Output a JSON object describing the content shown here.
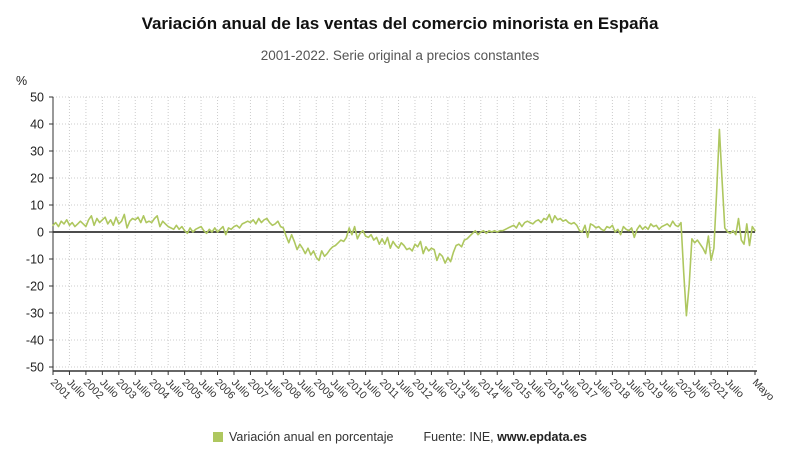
{
  "header": {
    "title": "Variación anual de las ventas del comercio minorista en España",
    "subtitle": "2001-2022. Serie original a precios constantes"
  },
  "legend": {
    "label": "Variación anual en porcentaje"
  },
  "footer": {
    "source_prefix": "Fuente: INE, ",
    "source_site": "www.epdata.es"
  },
  "chart_data": {
    "type": "line",
    "title": "Variación anual de las ventas del comercio minorista en España",
    "subtitle": "2001-2022. Serie original a precios constantes",
    "xlabel": "",
    "ylabel": "%",
    "ylim": [
      -50,
      50
    ],
    "y_ticks": [
      50,
      40,
      30,
      20,
      10,
      0,
      -10,
      -20,
      -30,
      -40,
      -50
    ],
    "x_tick_labels": [
      "2001",
      "Julio",
      "2002",
      "Julio",
      "2003",
      "Julio",
      "2004",
      "Julio",
      "2005",
      "Julio",
      "2006",
      "Julio",
      "2007",
      "Julio",
      "2008",
      "Julio",
      "2009",
      "Julio",
      "2010",
      "Julio",
      "2011",
      "Julio",
      "2012",
      "Julio",
      "2013",
      "Julio",
      "2014",
      "Julio",
      "2015",
      "Julio",
      "2016",
      "Julio",
      "2017",
      "Julio",
      "2018",
      "Julio",
      "2019",
      "Julio",
      "2020",
      "Julio",
      "2021",
      "Julio",
      "Mayo"
    ],
    "x_start": "2001-01",
    "x_end": "2022-05",
    "frequency": "monthly",
    "grid": "dotted",
    "zero_line": true,
    "legend_position": "bottom",
    "colors": {
      "line": "#aec75f",
      "grid": "#cccccc",
      "axis": "#333333",
      "zero_line": "#333333",
      "tick_label": "#333333"
    },
    "series": [
      {
        "name": "Variación anual en porcentaje",
        "values": [
          2.5,
          3.5,
          2,
          4,
          3,
          4.5,
          2.5,
          3.5,
          2,
          3,
          4,
          3,
          2,
          4.5,
          6,
          2.5,
          5,
          3.5,
          4.5,
          5.5,
          3,
          4.5,
          2.5,
          5.5,
          3,
          4,
          6.5,
          1.5,
          4,
          5,
          4.5,
          5.5,
          3.5,
          6,
          3.5,
          4,
          3.5,
          5,
          6,
          2,
          4,
          3,
          2,
          1.5,
          1,
          2.5,
          1,
          2,
          0.5,
          -0.5,
          1.5,
          0,
          1,
          1.5,
          2,
          0.5,
          -0.5,
          1,
          0,
          1.5,
          0,
          1,
          2,
          -1,
          1.5,
          1,
          2,
          2.5,
          1.5,
          3,
          3.5,
          4,
          3.5,
          4.5,
          3,
          5,
          3.5,
          4.5,
          5,
          3.5,
          2.5,
          3,
          4,
          2,
          1.5,
          -1.5,
          -4,
          -1,
          -3.5,
          -6.5,
          -4.5,
          -6,
          -8,
          -6,
          -8.5,
          -7,
          -9.5,
          -10.5,
          -7,
          -9,
          -8,
          -6.5,
          -5.5,
          -5,
          -4,
          -3,
          -3.5,
          -2,
          1.5,
          -1,
          2,
          -2.5,
          -0.5,
          0.5,
          -1.5,
          -2,
          -1,
          -3,
          -2,
          -4.5,
          -2.5,
          -4.5,
          -2,
          -6,
          -3.5,
          -5,
          -6,
          -4,
          -5,
          -6.5,
          -6,
          -7,
          -4.5,
          -5.5,
          -3.5,
          -8,
          -5.5,
          -7,
          -6,
          -6.5,
          -10.5,
          -8,
          -9,
          -11.5,
          -9.5,
          -11,
          -7.5,
          -5,
          -4.5,
          -5.5,
          -3,
          -2.5,
          -1.5,
          -0.5,
          0.5,
          -1,
          0,
          0.5,
          -0.5,
          0.5,
          0,
          0.5,
          0,
          0.5,
          0.5,
          1,
          1.5,
          2,
          2.5,
          1.5,
          3.5,
          2,
          3.5,
          4,
          3.5,
          3,
          4,
          4.5,
          3.5,
          5,
          4.5,
          6.5,
          3.5,
          6,
          4.5,
          5,
          4,
          4.5,
          3.5,
          3,
          3.5,
          2.5,
          0.5,
          0,
          2.5,
          -2,
          3,
          2.5,
          1.5,
          2,
          1,
          0.5,
          2,
          1.5,
          2.5,
          0,
          1,
          -1,
          2,
          1,
          0.5,
          1.5,
          -2,
          1,
          2.5,
          1,
          2,
          1,
          3,
          2,
          2.5,
          1,
          2,
          2.5,
          3,
          2,
          4,
          2.5,
          2,
          3.5,
          -15,
          -31,
          -19.5,
          -2.5,
          -4,
          -3,
          -4.5,
          -6,
          -8,
          -1.5,
          -10.5,
          -6,
          14.5,
          38,
          19,
          1.5,
          0,
          -0.5,
          0.5,
          -1,
          5,
          -3,
          -4.5,
          3,
          -5,
          2,
          0.5
        ]
      }
    ]
  }
}
